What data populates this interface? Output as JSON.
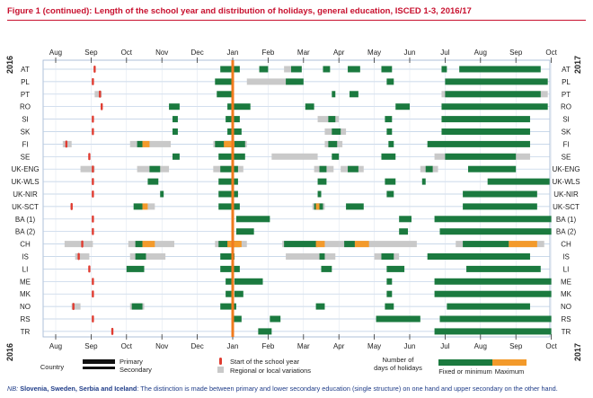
{
  "title": "Figure 1 (continued): Length of the school year and distribution of holidays, general education, ISCED 1-3, 2016/17",
  "chart_data": {
    "type": "timeline",
    "start_year": "2016",
    "end_year": "2017",
    "months": [
      "Aug",
      "Sep",
      "Oct",
      "Nov",
      "Dec",
      "Jan",
      "Feb",
      "Mar",
      "Apr",
      "May",
      "Jun",
      "Jul",
      "Aug",
      "Sep",
      "Oct"
    ],
    "axis_unit": "months from 1 Aug 2016",
    "time_range": [
      0,
      14
    ],
    "countries": [
      {
        "code": "AT",
        "start": [
          1.1
        ],
        "fixed": [
          [
            4.65,
            5.2
          ],
          [
            5.75,
            6.0
          ],
          [
            6.65,
            6.95
          ],
          [
            7.55,
            7.75
          ],
          [
            8.25,
            8.6
          ],
          [
            9.2,
            9.5
          ],
          [
            10.9,
            11.05
          ],
          [
            11.4,
            13.7
          ]
        ],
        "max": [],
        "regional": [
          [
            6.45,
            6.9
          ]
        ]
      },
      {
        "code": "PL",
        "start": [
          1.05
        ],
        "fixed": [
          [
            4.5,
            5.0
          ],
          [
            6.5,
            7.0
          ],
          [
            9.35,
            9.55
          ],
          [
            11.0,
            13.9
          ]
        ],
        "max": [],
        "regional": [
          [
            5.4,
            6.8
          ]
        ]
      },
      {
        "code": "PT",
        "start": [
          1.25
        ],
        "fixed": [
          [
            4.55,
            5.02
          ],
          [
            7.8,
            7.9
          ],
          [
            8.3,
            8.55
          ],
          [
            11.0,
            13.7
          ]
        ],
        "max": [],
        "regional": [
          [
            1.1,
            1.3
          ],
          [
            10.9,
            13.9
          ]
        ]
      },
      {
        "code": "RO",
        "start": [
          1.3
        ],
        "fixed": [
          [
            3.2,
            3.5
          ],
          [
            4.85,
            5.5
          ],
          [
            7.05,
            7.3
          ],
          [
            9.6,
            10.0
          ],
          [
            10.9,
            13.9
          ]
        ],
        "max": [],
        "regional": []
      },
      {
        "code": "SI",
        "start": [
          1.05
        ],
        "fixed": [
          [
            3.3,
            3.45
          ],
          [
            4.8,
            5.2
          ],
          [
            7.7,
            7.9
          ],
          [
            9.3,
            9.5
          ],
          [
            10.9,
            13.4
          ]
        ],
        "max": [],
        "regional": [
          [
            7.4,
            8.0
          ]
        ]
      },
      {
        "code": "SK",
        "start": [
          1.05
        ],
        "fixed": [
          [
            3.3,
            3.45
          ],
          [
            4.85,
            5.25
          ],
          [
            7.8,
            8.05
          ],
          [
            9.35,
            9.5
          ],
          [
            10.9,
            13.4
          ]
        ],
        "max": [],
        "regional": [
          [
            7.6,
            8.2
          ]
        ]
      },
      {
        "code": "FI",
        "start": [
          0.3
        ],
        "fixed": [
          [
            2.3,
            2.45
          ],
          [
            4.5,
            5.35
          ],
          [
            7.7,
            7.95
          ],
          [
            9.4,
            9.55
          ],
          [
            10.5,
            13.4
          ]
        ],
        "max": [
          [
            2.45,
            2.65
          ],
          [
            4.75,
            5.05
          ]
        ],
        "regional": [
          [
            0.2,
            0.45
          ],
          [
            2.1,
            3.25
          ],
          [
            4.45,
            5.4
          ],
          [
            7.6,
            8.1
          ]
        ]
      },
      {
        "code": "SE",
        "start": [
          0.95
        ],
        "fixed": [
          [
            3.3,
            3.5
          ],
          [
            4.6,
            5.35
          ],
          [
            7.8,
            8.0
          ],
          [
            9.2,
            9.6
          ],
          [
            11.0,
            13.0
          ]
        ],
        "max": [],
        "regional": [
          [
            6.1,
            7.4
          ],
          [
            10.7,
            13.4
          ]
        ]
      },
      {
        "code": "UK-ENG",
        "start": [
          1.05
        ],
        "fixed": [
          [
            2.65,
            2.95
          ],
          [
            4.65,
            5.15
          ],
          [
            7.45,
            7.65
          ],
          [
            8.25,
            8.55
          ],
          [
            10.45,
            10.65
          ],
          [
            11.65,
            13.0
          ]
        ],
        "max": [],
        "regional": [
          [
            0.7,
            1.1
          ],
          [
            2.3,
            3.2
          ],
          [
            4.45,
            5.3
          ],
          [
            7.3,
            7.85
          ],
          [
            8.05,
            8.7
          ],
          [
            10.3,
            10.8
          ]
        ]
      },
      {
        "code": "UK-WLS",
        "start": [
          1.05
        ],
        "fixed": [
          [
            2.6,
            2.9
          ],
          [
            4.6,
            5.15
          ],
          [
            7.4,
            7.65
          ],
          [
            9.3,
            9.6
          ],
          [
            10.35,
            10.45
          ],
          [
            12.2,
            13.95
          ]
        ],
        "max": [],
        "regional": []
      },
      {
        "code": "UK-NIR",
        "start": [
          1.05
        ],
        "fixed": [
          [
            2.95,
            3.05
          ],
          [
            4.6,
            5.15
          ],
          [
            7.4,
            7.5
          ],
          [
            9.35,
            9.55
          ],
          [
            11.5,
            13.6
          ]
        ],
        "max": [],
        "regional": []
      },
      {
        "code": "UK-SCT",
        "start": [
          0.45
        ],
        "fixed": [
          [
            2.2,
            2.45
          ],
          [
            4.6,
            5.2
          ],
          [
            7.3,
            7.55
          ],
          [
            8.2,
            8.7
          ],
          [
            11.5,
            13.6
          ]
        ],
        "max": [
          [
            2.45,
            2.6
          ],
          [
            7.35,
            7.45
          ]
        ],
        "regional": [
          [
            2.6,
            2.8
          ],
          [
            7.25,
            7.6
          ]
        ]
      },
      {
        "code": "BA (1)",
        "start": [
          1.05
        ],
        "fixed": [
          [
            5.1,
            6.05
          ],
          [
            9.7,
            10.05
          ],
          [
            10.7,
            14.0
          ]
        ],
        "max": [],
        "regional": []
      },
      {
        "code": "BA (2)",
        "start": [
          1.05
        ],
        "fixed": [
          [
            5.1,
            5.6
          ],
          [
            9.7,
            9.95
          ],
          [
            10.85,
            14.0
          ]
        ],
        "max": [],
        "regional": []
      },
      {
        "code": "CH",
        "start": [
          0.75
        ],
        "fixed": [
          [
            2.25,
            2.45
          ],
          [
            4.6,
            5.2
          ],
          [
            6.45,
            7.4
          ],
          [
            8.15,
            8.45
          ],
          [
            11.5,
            12.8
          ]
        ],
        "max": [
          [
            2.45,
            2.8
          ],
          [
            4.85,
            5.25
          ],
          [
            7.35,
            7.6
          ],
          [
            8.45,
            8.85
          ],
          [
            12.8,
            13.6
          ]
        ],
        "regional": [
          [
            0.25,
            1.05
          ],
          [
            2.05,
            3.35
          ],
          [
            4.5,
            5.4
          ],
          [
            6.4,
            8.0
          ],
          [
            8.0,
            10.2
          ],
          [
            11.3,
            13.8
          ]
        ]
      },
      {
        "code": "IS",
        "start": [
          0.65
        ],
        "fixed": [
          [
            2.25,
            2.55
          ],
          [
            4.65,
            5.05
          ],
          [
            7.45,
            7.6
          ],
          [
            9.2,
            9.55
          ],
          [
            10.5,
            13.4
          ]
        ],
        "max": [],
        "regional": [
          [
            0.55,
            0.95
          ],
          [
            2.1,
            3.1
          ],
          [
            6.5,
            7.9
          ],
          [
            9.0,
            9.7
          ]
        ]
      },
      {
        "code": "LI",
        "start": [
          0.95
        ],
        "fixed": [
          [
            2.0,
            2.5
          ],
          [
            4.65,
            5.2
          ],
          [
            7.5,
            7.8
          ],
          [
            9.35,
            9.85
          ],
          [
            11.6,
            13.7
          ]
        ],
        "max": [],
        "regional": []
      },
      {
        "code": "ME",
        "start": [
          1.05
        ],
        "fixed": [
          [
            4.8,
            5.0
          ],
          [
            5.05,
            5.85
          ],
          [
            9.35,
            9.5
          ],
          [
            10.7,
            14.0
          ]
        ],
        "max": [],
        "regional": []
      },
      {
        "code": "MK",
        "start": [
          1.05
        ],
        "fixed": [
          [
            4.8,
            5.0
          ],
          [
            5.05,
            5.3
          ],
          [
            9.35,
            9.5
          ],
          [
            10.7,
            14.0
          ]
        ],
        "max": [],
        "regional": []
      },
      {
        "code": "NO",
        "start": [
          0.5
        ],
        "fixed": [
          [
            2.15,
            2.45
          ],
          [
            4.65,
            5.1
          ],
          [
            7.35,
            7.6
          ],
          [
            9.3,
            9.55
          ],
          [
            11.05,
            13.4
          ]
        ],
        "max": [],
        "regional": [
          [
            0.45,
            0.7
          ],
          [
            2.1,
            2.5
          ]
        ]
      },
      {
        "code": "RS",
        "start": [
          1.05
        ],
        "fixed": [
          [
            5.02,
            5.25
          ],
          [
            6.05,
            6.35
          ],
          [
            9.05,
            10.3
          ],
          [
            10.85,
            14.0
          ]
        ],
        "max": [],
        "regional": []
      },
      {
        "code": "TR",
        "start": [
          1.6
        ],
        "fixed": [
          [
            5.72,
            6.1
          ],
          [
            10.7,
            14.0
          ]
        ],
        "max": [],
        "regional": []
      }
    ],
    "school_year_marker": 5.0,
    "legend": {
      "country_label": "Country",
      "primary_label": "Primary",
      "secondary_label": "Secondary",
      "start_label": "Start of the school year",
      "regional_label": "Regional or local variations",
      "holidays_label_1": "Number",
      "holidays_label_2": "of",
      "holidays_label_3": "days of holidays",
      "fixed_label": "Fixed or minimum",
      "max_label": "Maximum"
    },
    "colors": {
      "fixed": "#1b7a3f",
      "max": "#f39a2b",
      "regional": "#c9c9c9",
      "start": "#e03c31",
      "marker": "#f07b1e",
      "grid": "#b9cce3"
    }
  },
  "note": {
    "prefix": "NB:",
    "bold": "Slovenia, Sweden, Serbia and Iceland",
    "rest": ": The distinction is made between primary and lower secondary education (single structure) on one hand and upper secondary on the other hand."
  }
}
